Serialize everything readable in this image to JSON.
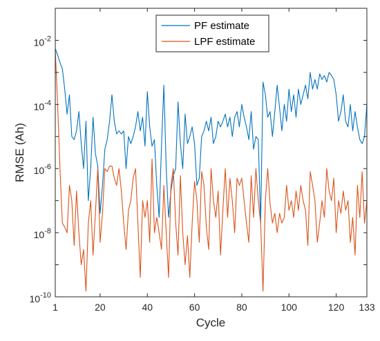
{
  "chart_data": {
    "type": "line",
    "xlabel": "Cycle",
    "ylabel": "RMSE (Ah)",
    "xlim": [
      1,
      133
    ],
    "ylim": [
      1e-10,
      0.1
    ],
    "y_scale": "log",
    "grid": false,
    "legend_position": "top-center",
    "x_ticks": [
      {
        "value": 1,
        "label": "1"
      },
      {
        "value": 20,
        "label": "20"
      },
      {
        "value": 40,
        "label": "40"
      },
      {
        "value": 60,
        "label": "60"
      },
      {
        "value": 80,
        "label": "80"
      },
      {
        "value": 100,
        "label": "100"
      },
      {
        "value": 120,
        "label": "120"
      },
      {
        "value": 133,
        "label": "133"
      }
    ],
    "y_ticks": [
      {
        "value": 1e-10,
        "base": "10",
        "exp": "-10"
      },
      {
        "value": 1e-08,
        "base": "10",
        "exp": "-8"
      },
      {
        "value": 1e-06,
        "base": "10",
        "exp": "-6"
      },
      {
        "value": 0.0001,
        "base": "10",
        "exp": "-4"
      },
      {
        "value": 0.01,
        "base": "10",
        "exp": "-2"
      }
    ],
    "series": [
      {
        "name": "PF estimate",
        "color": "#0072BD",
        "points": [
          [
            1,
            0.0055
          ],
          [
            2,
            0.0035
          ],
          [
            3,
            0.002
          ],
          [
            4,
            0.0013
          ],
          [
            5,
            0.0003
          ],
          [
            6,
            5e-05
          ],
          [
            7,
            0.0002
          ],
          [
            8,
            1e-05
          ],
          [
            9,
            8e-06
          ],
          [
            10,
            1.5e-05
          ],
          [
            11,
            6e-05
          ],
          [
            12,
            6e-06
          ],
          [
            13,
            1e-06
          ],
          [
            14,
            3e-05
          ],
          [
            15,
            1e-07
          ],
          [
            16,
            1e-06
          ],
          [
            17,
            4e-05
          ],
          [
            18,
            3e-06
          ],
          [
            19,
            1.2e-06
          ],
          [
            20,
            4e-08
          ],
          [
            21,
            3e-07
          ],
          [
            22,
            4e-06
          ],
          [
            23,
            8e-06
          ],
          [
            24,
            3e-05
          ],
          [
            25,
            0.0002
          ],
          [
            26,
            3e-05
          ],
          [
            27,
            1.2e-05
          ],
          [
            28,
            1.5e-05
          ],
          [
            29,
            1.2e-05
          ],
          [
            30,
            1.5e-05
          ],
          [
            31,
            1e-06
          ],
          [
            32,
            1e-05
          ],
          [
            33,
            6e-06
          ],
          [
            34,
            1e-05
          ],
          [
            35,
            2e-05
          ],
          [
            36,
            6e-05
          ],
          [
            37,
            1.5e-05
          ],
          [
            38,
            4e-05
          ],
          [
            39,
            5e-06
          ],
          [
            40,
            0.00025
          ],
          [
            41,
            2e-05
          ],
          [
            42,
            5e-06
          ],
          [
            43,
            8e-06
          ],
          [
            44,
            3e-07
          ],
          [
            45,
            3e-08
          ],
          [
            46,
            5e-06
          ],
          [
            47,
            0.0004
          ],
          [
            48,
            1e-06
          ],
          [
            49,
            3e-08
          ],
          [
            50,
            2e-07
          ],
          [
            51,
            6e-07
          ],
          [
            52,
            1e-06
          ],
          [
            53,
            0.00012
          ],
          [
            54,
            6e-06
          ],
          [
            55,
            1e-06
          ],
          [
            56,
            5e-05
          ],
          [
            57,
            6e-06
          ],
          [
            58,
            1e-05
          ],
          [
            59,
            2e-05
          ],
          [
            60,
            6e-06
          ],
          [
            61,
            3e-07
          ],
          [
            62,
            5e-07
          ],
          [
            63,
            1e-05
          ],
          [
            64,
            1.5e-05
          ],
          [
            65,
            3e-05
          ],
          [
            66,
            1.5e-05
          ],
          [
            67,
            4e-05
          ],
          [
            68,
            6e-06
          ],
          [
            69,
            1e-05
          ],
          [
            70,
            3e-05
          ],
          [
            71,
            2e-05
          ],
          [
            72,
            3e-05
          ],
          [
            73,
            5e-05
          ],
          [
            74,
            2e-05
          ],
          [
            75,
            4e-05
          ],
          [
            76,
            1e-05
          ],
          [
            77,
            4e-05
          ],
          [
            78,
            6e-05
          ],
          [
            79,
            2e-05
          ],
          [
            80,
            0.0001
          ],
          [
            81,
            4e-05
          ],
          [
            82,
            2e-05
          ],
          [
            83,
            8e-06
          ],
          [
            84,
            6e-05
          ],
          [
            85,
            4e-06
          ],
          [
            86,
            1e-05
          ],
          [
            87,
            8e-06
          ],
          [
            88,
            2e-08
          ],
          [
            89,
            0.0005
          ],
          [
            90,
            0.0002
          ],
          [
            91,
            4e-05
          ],
          [
            92,
            6e-05
          ],
          [
            93,
            1e-05
          ],
          [
            94,
            6e-05
          ],
          [
            95,
            0.0004
          ],
          [
            96,
            8e-05
          ],
          [
            97,
            1.5e-05
          ],
          [
            98,
            0.0001
          ],
          [
            99,
            3e-05
          ],
          [
            100,
            0.0003
          ],
          [
            101,
            6e-05
          ],
          [
            102,
            0.0002
          ],
          [
            103,
            4e-05
          ],
          [
            104,
            0.0003
          ],
          [
            105,
            0.0001
          ],
          [
            106,
            0.0002
          ],
          [
            107,
            0.0004
          ],
          [
            108,
            0.00015
          ],
          [
            109,
            0.001
          ],
          [
            110,
            0.0003
          ],
          [
            111,
            0.0006
          ],
          [
            112,
            0.0003
          ],
          [
            113,
            0.0009
          ],
          [
            114,
            0.0006
          ],
          [
            115,
            0.0008
          ],
          [
            116,
            0.0005
          ],
          [
            117,
            0.001
          ],
          [
            118,
            0.0008
          ],
          [
            119,
            0.0006
          ],
          [
            120,
            0.0002
          ],
          [
            121,
            3e-05
          ],
          [
            122,
            6e-05
          ],
          [
            123,
            0.0002
          ],
          [
            124,
            3e-05
          ],
          [
            125,
            2e-05
          ],
          [
            126,
            0.0001
          ],
          [
            127,
            1.5e-05
          ],
          [
            128,
            6e-05
          ],
          [
            129,
            2e-05
          ],
          [
            130,
            8e-06
          ],
          [
            131,
            6e-06
          ],
          [
            132,
            1e-05
          ],
          [
            133,
            0.0001
          ]
        ]
      },
      {
        "name": "LPF estimate",
        "color": "#D95319",
        "points": [
          [
            1,
            0.005
          ],
          [
            2,
            0.0001
          ],
          [
            3,
            1e-06
          ],
          [
            4,
            2e-08
          ],
          [
            5,
            1.5e-08
          ],
          [
            6,
            1e-08
          ],
          [
            7,
            3e-07
          ],
          [
            8,
            1e-07
          ],
          [
            9,
            4e-09
          ],
          [
            10,
            2e-07
          ],
          [
            11,
            1e-08
          ],
          [
            12,
            1e-09
          ],
          [
            13,
            3e-09
          ],
          [
            14,
            1.5e-10
          ],
          [
            15,
            2e-08
          ],
          [
            16,
            1e-07
          ],
          [
            17,
            2e-09
          ],
          [
            18,
            4e-08
          ],
          [
            19,
            1e-06
          ],
          [
            20,
            5e-09
          ],
          [
            21,
            4e-08
          ],
          [
            22,
            1e-06
          ],
          [
            23,
            8e-07
          ],
          [
            24,
            1.2e-06
          ],
          [
            25,
            1.2e-06
          ],
          [
            26,
            5e-07
          ],
          [
            27,
            3e-07
          ],
          [
            28,
            1e-06
          ],
          [
            29,
            2e-07
          ],
          [
            30,
            2e-08
          ],
          [
            31,
            3e-09
          ],
          [
            32,
            5e-08
          ],
          [
            33,
            1e-07
          ],
          [
            34,
            5e-07
          ],
          [
            35,
            1e-06
          ],
          [
            36,
            2e-08
          ],
          [
            37,
            4e-10
          ],
          [
            38,
            1e-07
          ],
          [
            39,
            3e-08
          ],
          [
            40,
            1e-07
          ],
          [
            41,
            5e-09
          ],
          [
            42,
            2e-06
          ],
          [
            43,
            1e-08
          ],
          [
            44,
            3e-08
          ],
          [
            45,
            1e-08
          ],
          [
            46,
            3e-09
          ],
          [
            47,
            3e-07
          ],
          [
            48,
            1e-08
          ],
          [
            49,
            4e-10
          ],
          [
            50,
            3e-07
          ],
          [
            51,
            1e-06
          ],
          [
            52,
            2e-08
          ],
          [
            53,
            2e-09
          ],
          [
            54,
            6e-07
          ],
          [
            55,
            1e-08
          ],
          [
            56,
            1e-09
          ],
          [
            57,
            8e-09
          ],
          [
            58,
            4e-10
          ],
          [
            59,
            2e-08
          ],
          [
            60,
            4e-07
          ],
          [
            61,
            1e-07
          ],
          [
            62,
            5e-09
          ],
          [
            63,
            8e-07
          ],
          [
            64,
            3e-07
          ],
          [
            65,
            1.5e-08
          ],
          [
            66,
            3e-09
          ],
          [
            67,
            1e-06
          ],
          [
            68,
            1e-07
          ],
          [
            69,
            3e-08
          ],
          [
            70,
            2e-07
          ],
          [
            71,
            2e-09
          ],
          [
            72,
            5e-08
          ],
          [
            73,
            1e-06
          ],
          [
            74,
            3e-08
          ],
          [
            75,
            5e-07
          ],
          [
            76,
            1e-07
          ],
          [
            77,
            1e-08
          ],
          [
            78,
            5e-07
          ],
          [
            79,
            3e-07
          ],
          [
            80,
            5e-07
          ],
          [
            81,
            1e-07
          ],
          [
            82,
            2e-08
          ],
          [
            83,
            5e-09
          ],
          [
            84,
            6e-07
          ],
          [
            85,
            3e-08
          ],
          [
            86,
            1e-06
          ],
          [
            87,
            1e-07
          ],
          [
            88,
            2e-08
          ],
          [
            89,
            1.5e-10
          ],
          [
            90,
            1e-07
          ],
          [
            91,
            1e-06
          ],
          [
            92,
            8e-08
          ],
          [
            93,
            2e-08
          ],
          [
            94,
            4e-08
          ],
          [
            95,
            1e-08
          ],
          [
            96,
            4e-08
          ],
          [
            97,
            2e-08
          ],
          [
            98,
            3e-08
          ],
          [
            99,
            3e-07
          ],
          [
            100,
            5e-08
          ],
          [
            101,
            1e-07
          ],
          [
            102,
            3e-08
          ],
          [
            103,
            2e-07
          ],
          [
            104,
            5e-08
          ],
          [
            105,
            3e-07
          ],
          [
            106,
            1e-07
          ],
          [
            107,
            5e-08
          ],
          [
            108,
            4e-09
          ],
          [
            109,
            8e-07
          ],
          [
            110,
            3e-07
          ],
          [
            111,
            1e-07
          ],
          [
            112,
            5e-09
          ],
          [
            113,
            2e-08
          ],
          [
            114,
            1e-07
          ],
          [
            115,
            3e-08
          ],
          [
            116,
            1e-06
          ],
          [
            117,
            2e-07
          ],
          [
            118,
            1e-07
          ],
          [
            119,
            5e-07
          ],
          [
            120,
            1e-08
          ],
          [
            121,
            1e-07
          ],
          [
            122,
            4e-08
          ],
          [
            123,
            2e-07
          ],
          [
            124,
            5e-08
          ],
          [
            125,
            1e-07
          ],
          [
            126,
            5e-09
          ],
          [
            127,
            3e-08
          ],
          [
            128,
            2e-09
          ],
          [
            129,
            3e-07
          ],
          [
            130,
            3e-08
          ],
          [
            131,
            8e-07
          ],
          [
            132,
            2e-08
          ],
          [
            133,
            1e-07
          ]
        ]
      }
    ]
  }
}
